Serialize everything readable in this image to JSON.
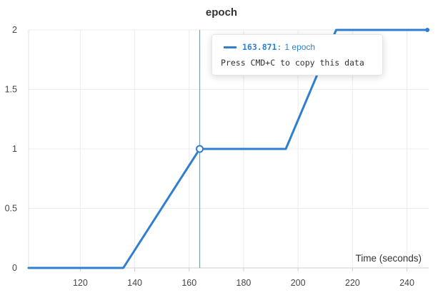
{
  "chart_data": {
    "type": "line",
    "title": "epoch",
    "xlabel": "Time (seconds)",
    "ylabel": "",
    "xlim": [
      101,
      248
    ],
    "ylim": [
      0,
      2
    ],
    "x_ticks": [
      120,
      140,
      160,
      180,
      200,
      220,
      240
    ],
    "y_ticks": [
      0,
      0.5,
      1,
      1.5,
      2
    ],
    "y_tick_labels": [
      "0",
      "0.5",
      "1",
      "1.5",
      "2"
    ],
    "grid": true,
    "series": [
      {
        "color": "#2f7fd0",
        "x": [
          101,
          135.8,
          163.871,
          195.5,
          214,
          247.5
        ],
        "y": [
          0,
          0,
          1,
          1,
          2,
          2
        ]
      }
    ],
    "hover": {
      "x": 163.871,
      "y": 1,
      "line_color": "#36b9cc"
    }
  },
  "tooltip": {
    "value": "163.871",
    "separator": ":",
    "text": "1 epoch",
    "hint": "Press CMD+C to copy this data"
  }
}
